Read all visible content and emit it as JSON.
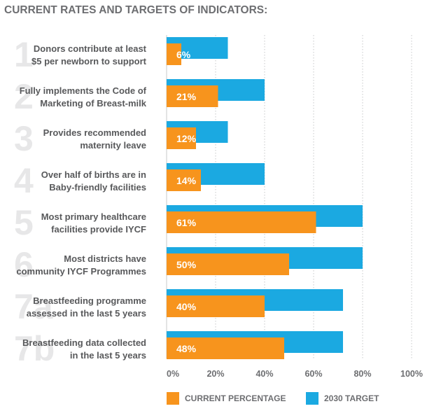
{
  "title": "CURRENT RATES AND TARGETS OF INDICATORS:",
  "chart_data": {
    "type": "bar",
    "orientation": "horizontal",
    "xlim": [
      0,
      100
    ],
    "tick_labels": [
      "0%",
      "20%",
      "40%",
      "60%",
      "80%",
      "100%"
    ],
    "grid": "dotted vertical",
    "legend_position": "bottom",
    "categories": [
      {
        "number": "1",
        "lines": [
          "Donors contribute at least",
          "$5 per newborn to support"
        ]
      },
      {
        "number": "2",
        "lines": [
          "Fully implements the Code of",
          "Marketing of Breast-milk"
        ]
      },
      {
        "number": "3",
        "lines": [
          "Provides recommended",
          "maternity leave"
        ]
      },
      {
        "number": "4",
        "lines": [
          "Over half of births are in",
          "Baby-friendly facilities"
        ]
      },
      {
        "number": "5",
        "lines": [
          "Most primary healthcare",
          "facilities provide IYCF"
        ]
      },
      {
        "number": "6",
        "lines": [
          "Most districts have",
          "community IYCF Programmes"
        ]
      },
      {
        "number": "7a",
        "lines": [
          "Breastfeeding programme",
          "assessed in the last 5 years"
        ]
      },
      {
        "number": "7b",
        "lines": [
          "Breastfeeding data collected",
          "in the last 5 years"
        ]
      }
    ],
    "series": [
      {
        "name": "CURRENT PERCENTAGE",
        "color": "#f7941d",
        "values": [
          6,
          21,
          12,
          14,
          61,
          50,
          40,
          48
        ],
        "labels": [
          "6%",
          "21%",
          "12%",
          "14%",
          "61%",
          "50%",
          "40%",
          "48%"
        ]
      },
      {
        "name": "2030 TARGET",
        "color": "#1ba9e1",
        "values": [
          25,
          40,
          25,
          40,
          80,
          80,
          72,
          72
        ]
      }
    ]
  }
}
